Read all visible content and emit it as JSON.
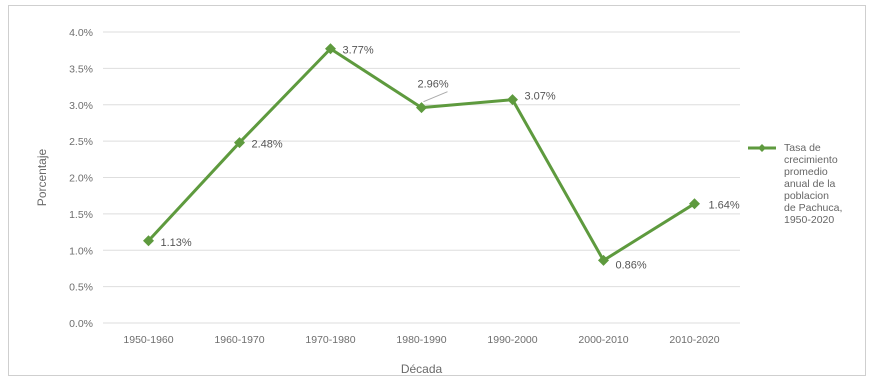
{
  "chart_data": {
    "type": "line",
    "title": "",
    "xlabel": "Década",
    "ylabel": "Porcentaje",
    "categories": [
      "1950-1960",
      "1960-1970",
      "1970-1980",
      "1980-1990",
      "1990-2000",
      "2000-2010",
      "2010-2020"
    ],
    "series": [
      {
        "name": "Tasa de crecimiento promedio anual de la poblacion de Pachuca, 1950-2020",
        "values": [
          1.13,
          2.48,
          3.77,
          2.96,
          3.07,
          0.86,
          1.64
        ],
        "labels": [
          "1.13%",
          "2.48%",
          "3.77%",
          "2.96%",
          "3.07%",
          "0.86%",
          "1.64%"
        ],
        "color": "#5e9a3e"
      }
    ],
    "ylim": [
      0,
      4
    ],
    "yticks": [
      0,
      0.5,
      1,
      1.5,
      2,
      2.5,
      3,
      3.5,
      4
    ],
    "ytick_labels": [
      "0.0%",
      "0.5%",
      "1.0%",
      "1.5%",
      "2.0%",
      "2.5%",
      "3.0%",
      "3.5%",
      "4.0%"
    ],
    "grid": true,
    "legend_position": "right",
    "legend_lines": [
      "Tasa de",
      "crecimiento",
      "promedio",
      "anual de la",
      "poblacion",
      "de Pachuca,",
      "1950-2020"
    ],
    "gridline_color": "#dedede"
  }
}
